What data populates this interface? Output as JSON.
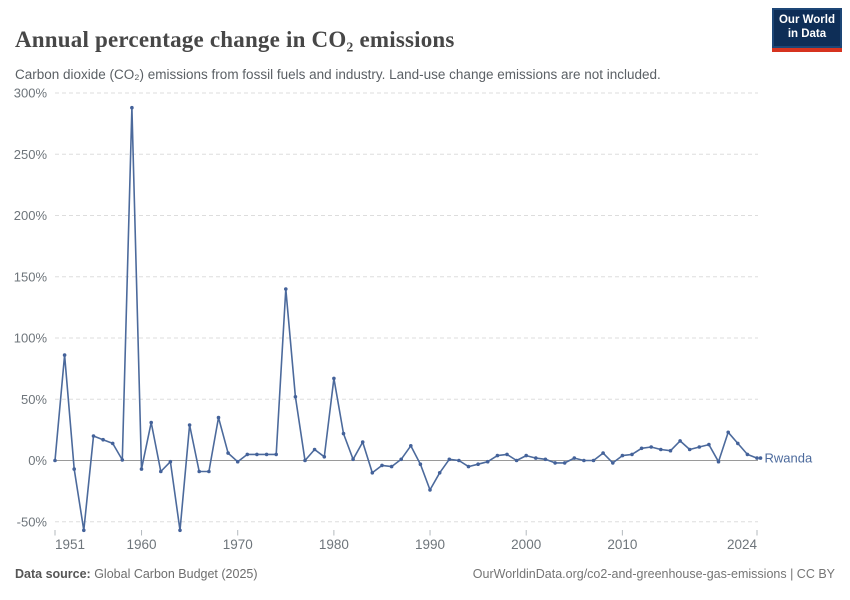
{
  "header": {
    "title": "Annual percentage change in CO₂ emissions",
    "subtitle": "Carbon dioxide (CO₂) emissions from fossil fuels and industry. Land-use change emissions are not included."
  },
  "logo": {
    "line1": "Our World",
    "line2": "in Data",
    "bg_color": "#0e2e57",
    "accent_color": "#d6331f"
  },
  "footer": {
    "source_label": "Data source:",
    "source_text": " Global Carbon Budget (2025)",
    "citation": "OurWorldinData.org/co2-and-greenhouse-gas-emissions | CC BY"
  },
  "chart_data": {
    "type": "line",
    "title": "Annual percentage change in CO2 emissions",
    "series": [
      {
        "name": "Rwanda",
        "x": [
          1951,
          1952,
          1953,
          1954,
          1955,
          1956,
          1957,
          1958,
          1959,
          1960,
          1961,
          1962,
          1963,
          1964,
          1965,
          1966,
          1967,
          1968,
          1969,
          1970,
          1971,
          1972,
          1973,
          1974,
          1975,
          1976,
          1977,
          1978,
          1979,
          1980,
          1981,
          1982,
          1983,
          1984,
          1985,
          1986,
          1987,
          1988,
          1989,
          1990,
          1991,
          1992,
          1993,
          1994,
          1995,
          1996,
          1997,
          1998,
          1999,
          2000,
          2001,
          2002,
          2003,
          2004,
          2005,
          2006,
          2007,
          2008,
          2009,
          2010,
          2011,
          2012,
          2013,
          2014,
          2015,
          2016,
          2017,
          2018,
          2019,
          2020,
          2021,
          2022,
          2023,
          2024
        ],
        "values": [
          0,
          86,
          -7,
          -57,
          20,
          17,
          14,
          0.5,
          288,
          -7,
          31,
          -9,
          -1,
          -57,
          29,
          -9,
          -9,
          35,
          6,
          -1,
          5,
          5,
          5,
          5,
          140,
          52,
          0,
          9,
          3,
          67,
          22,
          1,
          15,
          -10,
          -4,
          -5,
          1,
          12,
          -3,
          -24,
          -10,
          1,
          0,
          -5,
          -3,
          -1,
          4,
          5,
          0,
          4,
          2,
          1,
          -2,
          -2,
          2,
          0,
          0,
          6,
          -2,
          4,
          5,
          10,
          11,
          9,
          8,
          16,
          9,
          11,
          13,
          -1,
          23,
          14,
          5,
          2
        ]
      }
    ],
    "series_label": "Rwanda",
    "xlabel": "",
    "ylabel": "",
    "ylim": [
      -60,
      305
    ],
    "y_ticks": [
      300,
      250,
      200,
      150,
      100,
      50,
      0,
      -50
    ],
    "y_tick_suffix": "%",
    "x_ticks": [
      1951,
      1960,
      1970,
      1980,
      1990,
      2000,
      2010,
      2024
    ],
    "grid": "dashed horizontal, solid zero line",
    "legend_position": "end-of-line label",
    "line_color": "#4c6a9c",
    "dot_color": "#44629a",
    "grid_color": "#dddddd",
    "zero_line_color": "#9a9a9a",
    "tick_label_color": "#6e757b"
  }
}
